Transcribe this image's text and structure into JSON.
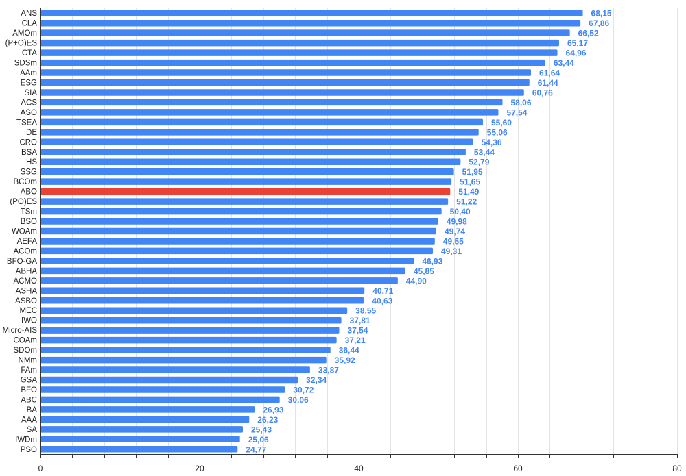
{
  "chart_data": {
    "type": "bar",
    "orientation": "horizontal",
    "categories": [
      "ANS",
      "CLA",
      "AMOm",
      "(P+O)ES",
      "CTA",
      "SDSm",
      "AAm",
      "ESG",
      "SIA",
      "ACS",
      "ASO",
      "TSEA",
      "DE",
      "CRO",
      "BSA",
      "HS",
      "SSG",
      "BCOm",
      "ABO",
      "(PO)ES",
      "TSm",
      "BSO",
      "WOAm",
      "AEFA",
      "ACOm",
      "BFO-GA",
      "ABHA",
      "ACMO",
      "ASHA",
      "ASBO",
      "MEC",
      "IWO",
      "Micro-AIS",
      "COAm",
      "SDOm",
      "NMm",
      "FAm",
      "GSA",
      "BFO",
      "ABC",
      "BA",
      "AAA",
      "SA",
      "IWDm",
      "PSO"
    ],
    "values": [
      68.15,
      67.86,
      66.52,
      65.17,
      64.96,
      63.44,
      61.64,
      61.44,
      60.76,
      58.06,
      57.54,
      55.6,
      55.06,
      54.36,
      53.44,
      52.79,
      51.95,
      51.65,
      51.49,
      51.22,
      50.4,
      49.98,
      49.74,
      49.55,
      49.31,
      46.93,
      45.85,
      44.9,
      40.71,
      40.63,
      38.55,
      37.81,
      37.54,
      37.21,
      36.44,
      35.92,
      33.87,
      32.34,
      30.72,
      30.06,
      26.93,
      26.23,
      25.43,
      25.06,
      24.77
    ],
    "value_labels": [
      "68,15",
      "67,86",
      "66,52",
      "65,17",
      "64,96",
      "63,44",
      "61,64",
      "61,44",
      "60,76",
      "58,06",
      "57,54",
      "55,60",
      "55,06",
      "54,36",
      "53,44",
      "52,79",
      "51,95",
      "51,65",
      "51,49",
      "51,22",
      "50,40",
      "49,98",
      "49,74",
      "49,55",
      "49,31",
      "46,93",
      "45,85",
      "44,90",
      "40,71",
      "40,63",
      "38,55",
      "37,81",
      "37,54",
      "37,21",
      "36,44",
      "35,92",
      "33,87",
      "32,34",
      "30,72",
      "30,06",
      "26,93",
      "26,23",
      "25,43",
      "25,06",
      "24,77"
    ],
    "highlight": "ABO",
    "xlim": [
      0,
      80
    ],
    "x_ticks": [
      0,
      20,
      40,
      60,
      80
    ],
    "minor_step": 4,
    "grid": true,
    "title": "",
    "xlabel": "",
    "ylabel": "",
    "colors": {
      "bar": "#4285f4",
      "highlight": "#ea4335",
      "label": "#4285f4",
      "grid": "#e3e3e3",
      "axis": "#333333",
      "tick_text": "#222222"
    }
  }
}
